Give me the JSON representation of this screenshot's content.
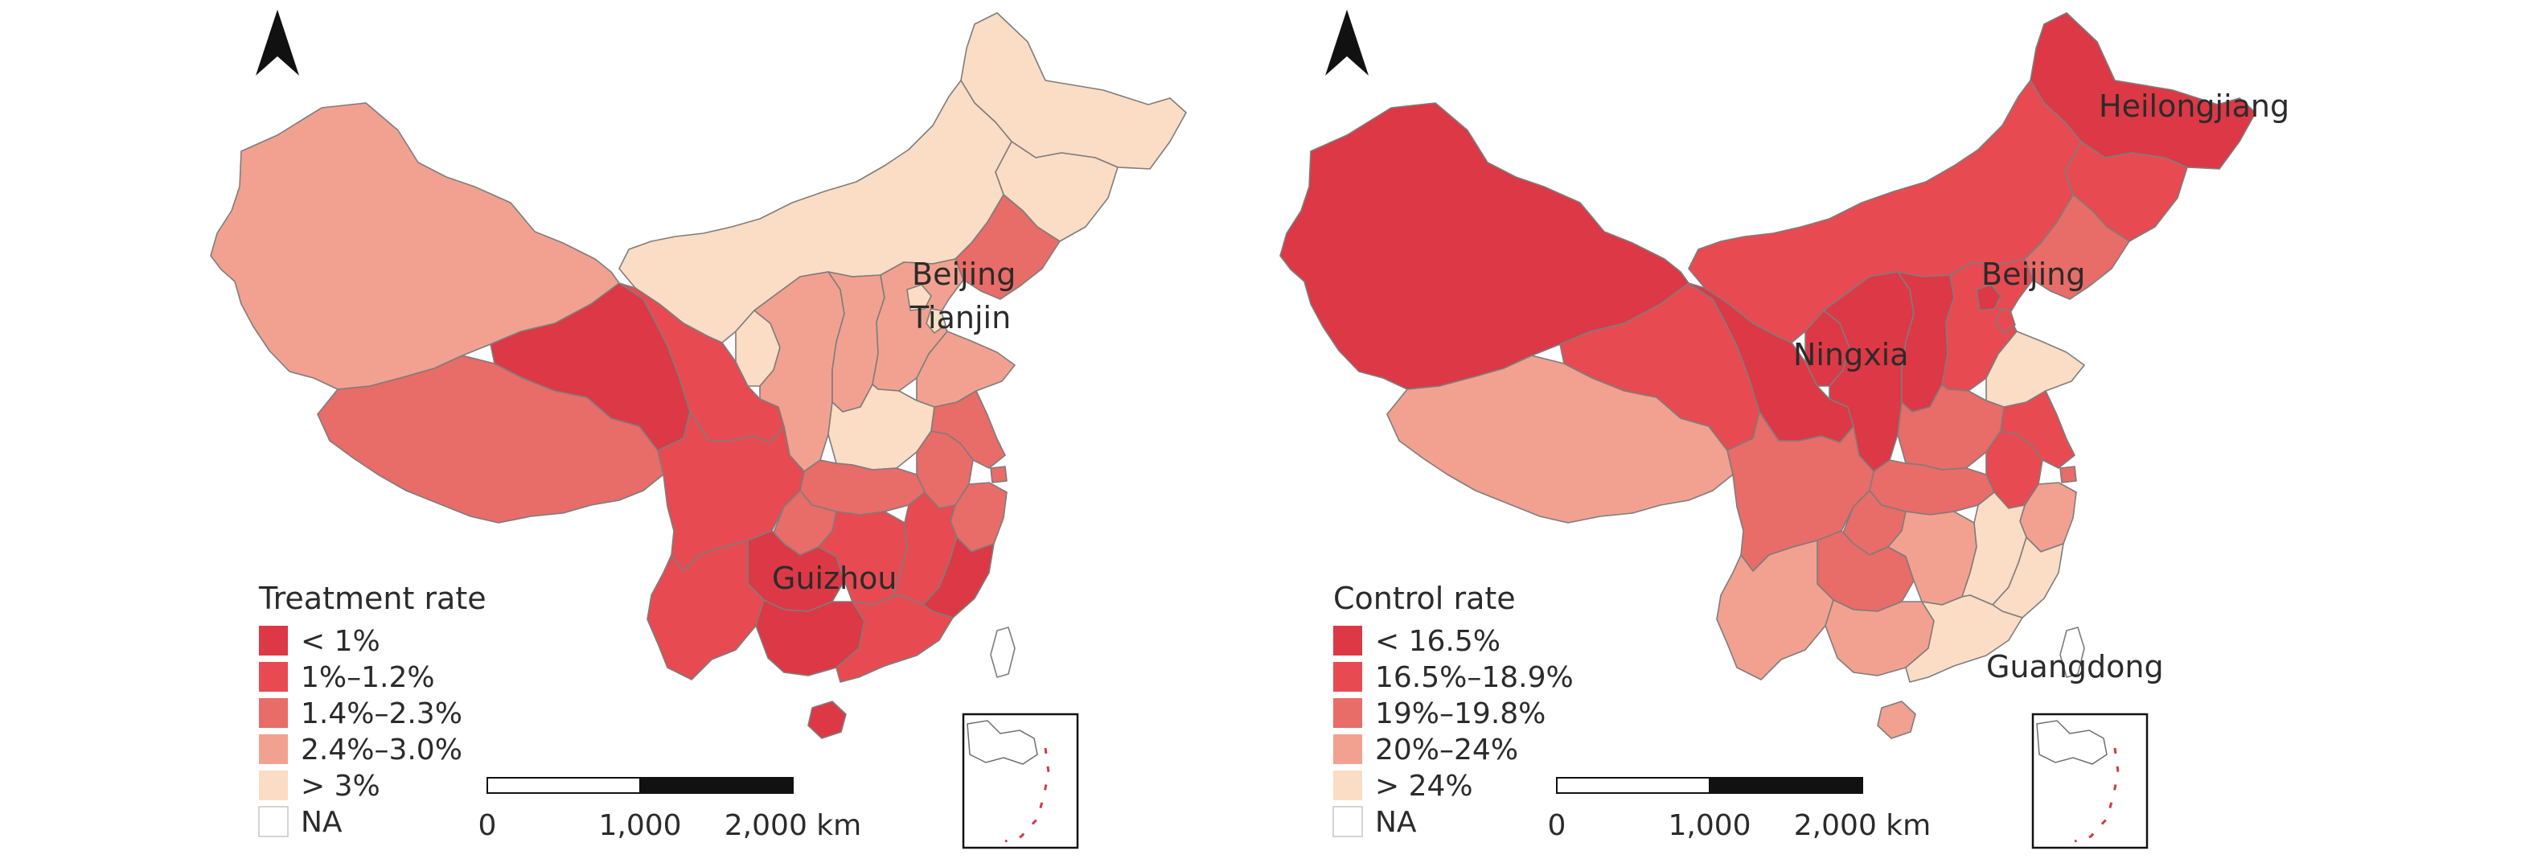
{
  "colors": {
    "cat1": "#dd3845",
    "cat2": "#e84a51",
    "cat3": "#e86c68",
    "cat4": "#f2a190",
    "cat5": "#fbdcc4",
    "na": "#ffffff",
    "border": "#7d7d7d",
    "text": "#2b2b2b"
  },
  "maps": [
    {
      "id": "treatment",
      "legend": {
        "title": "Treatment rate",
        "items": [
          {
            "label": "< 1%",
            "color": "#dd3845"
          },
          {
            "label": "1%–1.2%",
            "color": "#e84a51"
          },
          {
            "label": "1.4%–2.3%",
            "color": "#e86c68"
          },
          {
            "label": "2.4%–3.0%",
            "color": "#f2a190"
          },
          {
            "label": "> 3%",
            "color": "#fbdcc4"
          },
          {
            "label": "NA",
            "color": "#ffffff"
          }
        ]
      },
      "highlights": [
        "Beijing",
        "Tianjin",
        "Guizhou"
      ],
      "scalebar": {
        "ticks": [
          "0",
          "1,000",
          "2,000 km"
        ]
      },
      "north_arrow": "north-arrow"
    },
    {
      "id": "control",
      "legend": {
        "title": "Control rate",
        "items": [
          {
            "label": "< 16.5%",
            "color": "#dd3845"
          },
          {
            "label": "16.5%–18.9%",
            "color": "#e84a51"
          },
          {
            "label": "19%–19.8%",
            "color": "#e86c68"
          },
          {
            "label": "20%–24%",
            "color": "#f2a190"
          },
          {
            "label": "> 24%",
            "color": "#fbdcc4"
          },
          {
            "label": "NA",
            "color": "#ffffff"
          }
        ]
      },
      "highlights": [
        "Heilongjiang",
        "Beijing",
        "Ningxia",
        "Guangdong"
      ],
      "scalebar": {
        "ticks": [
          "0",
          "1,000",
          "2,000 km"
        ]
      },
      "north_arrow": "north-arrow"
    }
  ],
  "region_classes": {
    "treatment": {
      "Heilongjiang": 5,
      "Jilin": 5,
      "Liaoning": 3,
      "InnerMongolia": 5,
      "Xinjiang": 4,
      "Tibet": 3,
      "Qinghai": 1,
      "Gansu": 2,
      "Ningxia": 5,
      "Shaanxi": 4,
      "Shanxi": 4,
      "Hebei": 4,
      "Beijing": 5,
      "Tianjin": 5,
      "Shandong": 4,
      "Henan": 5,
      "Jiangsu": 3,
      "Anhui": 3,
      "Shanghai": 3,
      "Zhejiang": 3,
      "Hubei": 3,
      "Sichuan": 2,
      "Chongqing": 3,
      "Guizhou": 1,
      "Hunan": 2,
      "Jiangxi": 2,
      "Fujian": 1,
      "Yunnan": 2,
      "Guangxi": 1,
      "Guangdong": 2,
      "Hainan": 1,
      "Taiwan": 6
    },
    "control": {
      "Heilongjiang": 1,
      "Jilin": 2,
      "Liaoning": 3,
      "InnerMongolia": 2,
      "Xinjiang": 1,
      "Tibet": 4,
      "Qinghai": 2,
      "Gansu": 1,
      "Ningxia": 1,
      "Shaanxi": 1,
      "Shanxi": 1,
      "Hebei": 2,
      "Beijing": 1,
      "Tianjin": 2,
      "Shandong": 5,
      "Henan": 3,
      "Jiangsu": 2,
      "Anhui": 2,
      "Shanghai": 3,
      "Zhejiang": 4,
      "Hubei": 3,
      "Sichuan": 3,
      "Chongqing": 3,
      "Guizhou": 3,
      "Hunan": 4,
      "Jiangxi": 5,
      "Fujian": 5,
      "Yunnan": 4,
      "Guangxi": 4,
      "Guangdong": 5,
      "Hainan": 4,
      "Taiwan": 6
    }
  }
}
